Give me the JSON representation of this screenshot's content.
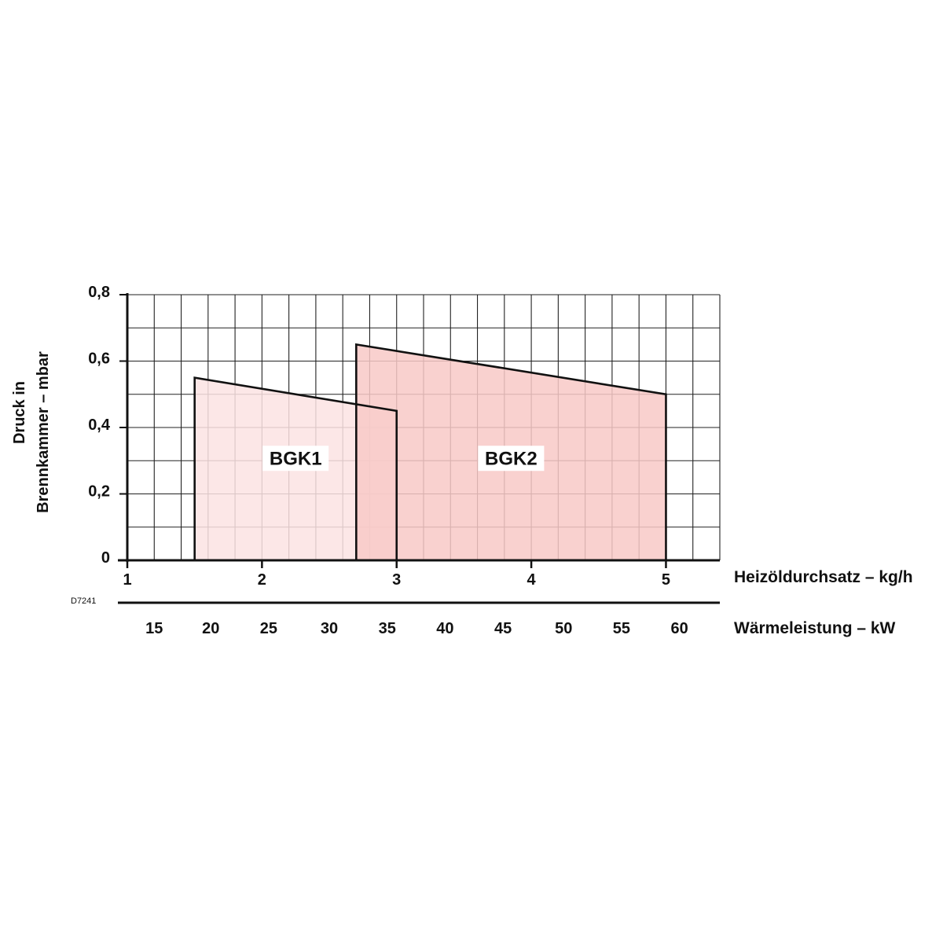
{
  "chart_data": {
    "type": "area",
    "code": "D7241",
    "x_axis": {
      "label": "Heizöldurchsatz – kg/h",
      "ticks": [
        "1",
        "2",
        "3",
        "4",
        "5"
      ],
      "range": [
        1,
        5.4
      ]
    },
    "x2_axis": {
      "label": "Wärmeleistung – kW",
      "ticks": [
        "15",
        "20",
        "25",
        "30",
        "35",
        "40",
        "45",
        "50",
        "55",
        "60"
      ],
      "tick_values_kgh": [
        1.2,
        1.62,
        2.05,
        2.5,
        2.93,
        3.36,
        3.79,
        4.24,
        4.67,
        5.1
      ]
    },
    "y_axis": {
      "label_lines": [
        "Druck in",
        "Brennkammer – mbar"
      ],
      "ticks": [
        "0",
        "0,2",
        "0,4",
        "0,6",
        "0,8"
      ],
      "tick_values": [
        0,
        0.2,
        0.4,
        0.6,
        0.8
      ],
      "range": [
        0,
        0.8
      ]
    },
    "grid": true,
    "series": [
      {
        "name": "BGK1",
        "color": "#fbe3e3",
        "points": [
          [
            1.5,
            0
          ],
          [
            1.5,
            0.55
          ],
          [
            3.0,
            0.45
          ],
          [
            3.0,
            0
          ]
        ]
      },
      {
        "name": "BGK2",
        "color": "#f8c9c7",
        "points": [
          [
            2.7,
            0
          ],
          [
            2.7,
            0.65
          ],
          [
            5.0,
            0.5
          ],
          [
            5.0,
            0
          ]
        ]
      }
    ]
  }
}
